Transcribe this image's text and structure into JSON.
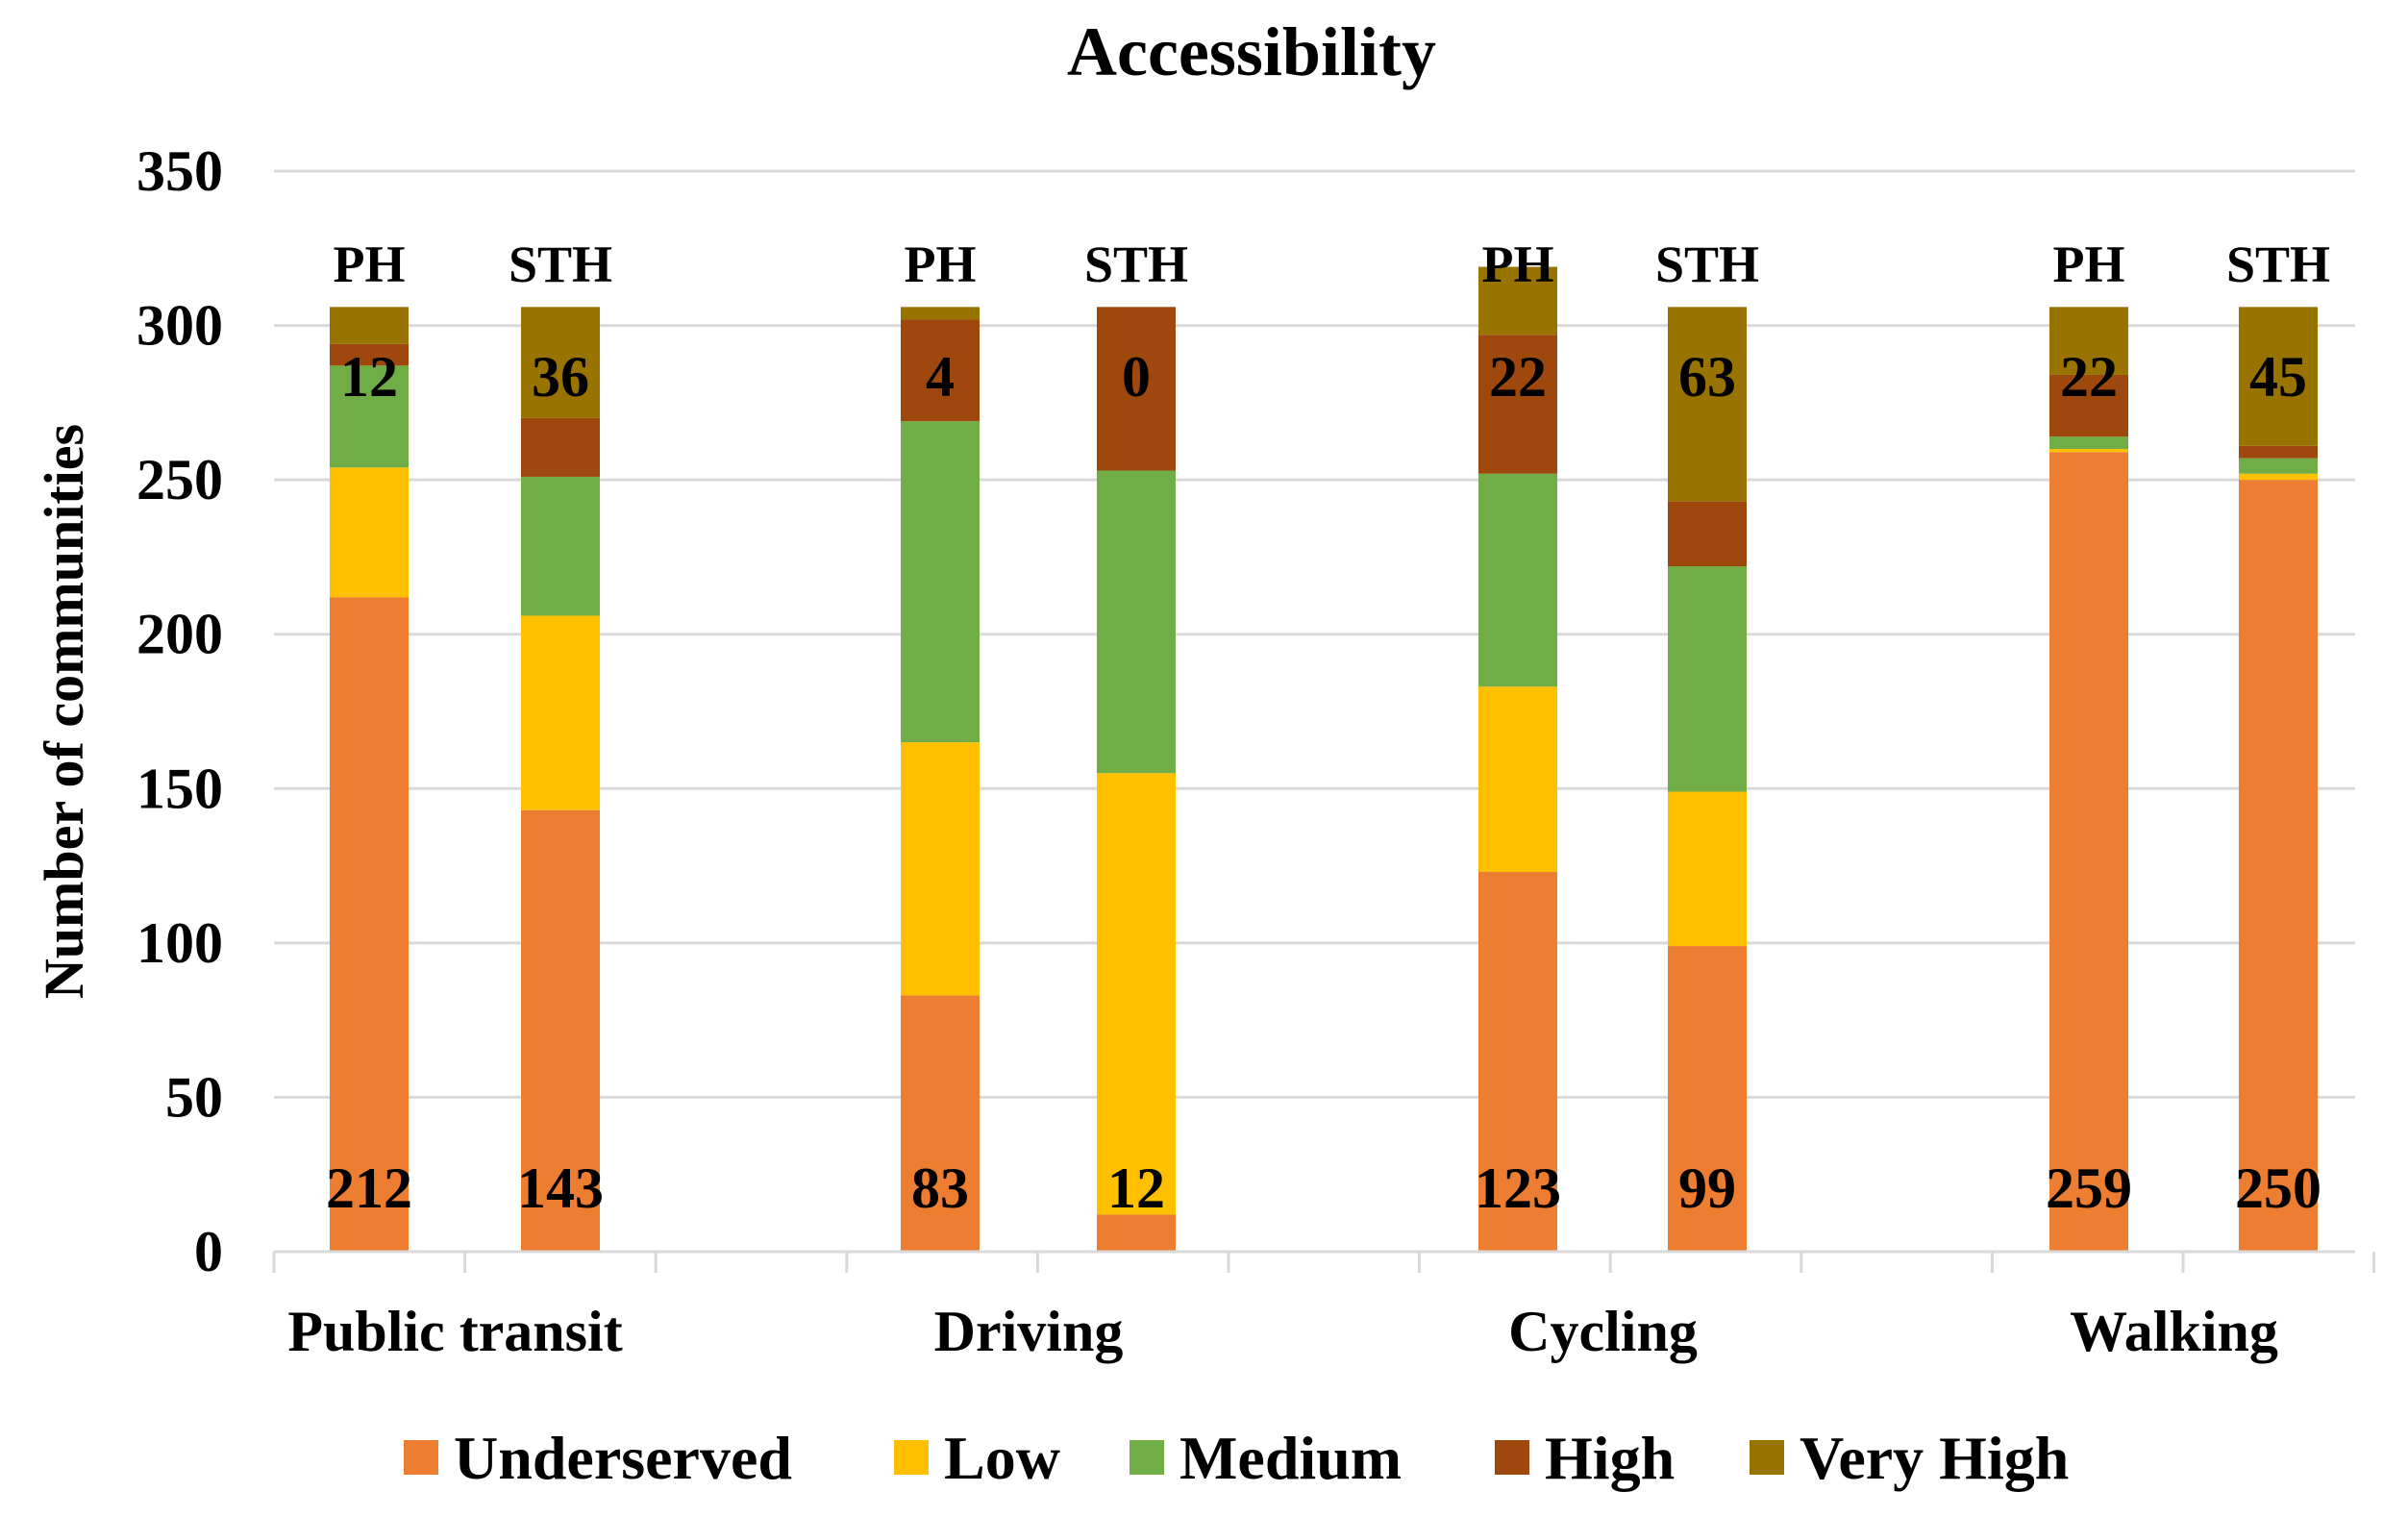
{
  "chart_data": {
    "type": "bar",
    "stacked": true,
    "title": "Accessibility",
    "ylabel": "Number of communities",
    "xlabel": "",
    "ylim": [
      0,
      350
    ],
    "yticks": [
      0,
      50,
      100,
      150,
      200,
      250,
      300,
      350
    ],
    "grid": true,
    "legend_position": "bottom",
    "groups": [
      "Public transit",
      "Driving",
      "Cycling",
      "Walking"
    ],
    "subcategories": [
      "PH",
      "STH"
    ],
    "series": [
      {
        "name": "Underserved",
        "color": "#ED7D31",
        "values": [
          212,
          143,
          83,
          12,
          123,
          99,
          259,
          250
        ]
      },
      {
        "name": "Low",
        "color": "#FFC000",
        "values": [
          42,
          63,
          82,
          143,
          60,
          50,
          1,
          2
        ]
      },
      {
        "name": "Medium",
        "color": "#70AD47",
        "values": [
          33,
          45,
          104,
          98,
          69,
          73,
          4,
          5
        ]
      },
      {
        "name": "High",
        "color": "#9E480E",
        "values": [
          7,
          19,
          33,
          53,
          45,
          21,
          20,
          4
        ]
      },
      {
        "name": "Very High",
        "color": "#997300",
        "values": [
          12,
          36,
          4,
          0,
          22,
          63,
          22,
          45
        ]
      }
    ],
    "bottom_labels": [
      "212",
      "143",
      "83",
      "12",
      "123",
      "99",
      "259",
      "250"
    ],
    "top_labels": [
      "12",
      "36",
      "4",
      "0",
      "22",
      "63",
      "22",
      "45"
    ]
  }
}
